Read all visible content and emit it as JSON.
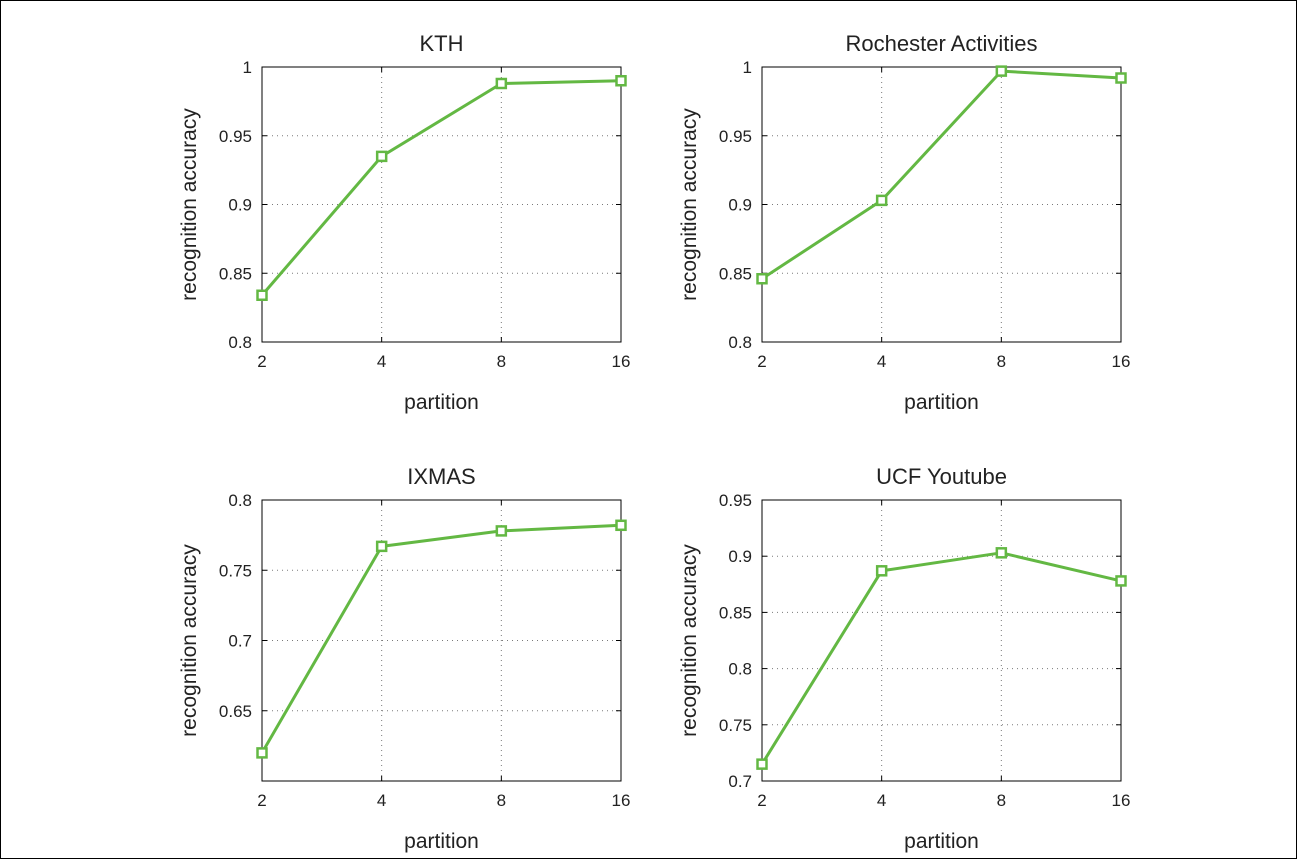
{
  "colors": {
    "series": "#63b843",
    "grid": "#7a7a7a",
    "axis": "#000000"
  },
  "chart_data": [
    {
      "type": "line",
      "title": "KTH",
      "xlabel": "partition",
      "ylabel": "recognition accuracy",
      "x": [
        2,
        4,
        8,
        16
      ],
      "xticks": [
        "2",
        "4",
        "8",
        "16"
      ],
      "ylim": [
        0.8,
        1.0
      ],
      "yticks": [
        "0.8",
        "0.85",
        "0.9",
        "0.95",
        "1"
      ],
      "series": [
        {
          "values": [
            0.834,
            0.935,
            0.988,
            0.99
          ]
        }
      ],
      "grid": true
    },
    {
      "type": "line",
      "title": "Rochester Activities",
      "xlabel": "partition",
      "ylabel": "recognition accuracy",
      "x": [
        2,
        4,
        8,
        16
      ],
      "xticks": [
        "2",
        "4",
        "8",
        "16"
      ],
      "ylim": [
        0.8,
        1.0
      ],
      "yticks": [
        "0.8",
        "0.85",
        "0.9",
        "0.95",
        "1"
      ],
      "series": [
        {
          "values": [
            0.846,
            0.903,
            0.997,
            0.992
          ]
        }
      ],
      "grid": true
    },
    {
      "type": "line",
      "title": "IXMAS",
      "xlabel": "partition",
      "ylabel": "recognition accuracy",
      "x": [
        2,
        4,
        8,
        16
      ],
      "xticks": [
        "2",
        "4",
        "8",
        "16"
      ],
      "ylim": [
        0.6,
        0.8
      ],
      "yticks": [
        "0.65",
        "0.7",
        "0.75",
        "0.8"
      ],
      "series": [
        {
          "values": [
            0.62,
            0.767,
            0.778,
            0.782
          ]
        }
      ],
      "grid": true
    },
    {
      "type": "line",
      "title": "UCF Youtube",
      "xlabel": "partition",
      "ylabel": "recognition accuracy",
      "x": [
        2,
        4,
        8,
        16
      ],
      "xticks": [
        "2",
        "4",
        "8",
        "16"
      ],
      "ylim": [
        0.7,
        0.95
      ],
      "yticks": [
        "0.7",
        "0.75",
        "0.8",
        "0.85",
        "0.9",
        "0.95"
      ],
      "series": [
        {
          "values": [
            0.715,
            0.887,
            0.903,
            0.878
          ]
        }
      ],
      "grid": true
    }
  ]
}
